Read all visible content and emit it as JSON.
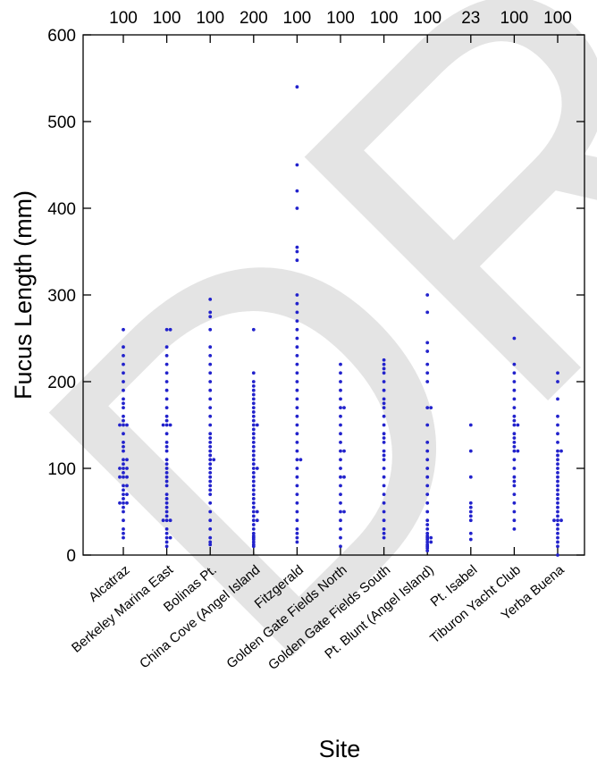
{
  "watermark": "DRAFT",
  "chart_data": {
    "type": "scatter",
    "xlabel": "Site",
    "ylabel": "Fucus Length (mm)",
    "ylim": [
      0,
      600
    ],
    "yticks": [
      "0",
      "100",
      "200",
      "300",
      "400",
      "500",
      "600"
    ],
    "categories": [
      "Alcatraz",
      "Berkeley Marina East",
      "Bolinas Pt.",
      "China Cove (Angel Island",
      "Fitzgerald",
      "Golden Gate Fields North",
      "Golden Gate Fields South",
      "Pt. Blunt (Angel Island)",
      "Pt. Isabel",
      "Tiburon Yacht Club",
      "Yerba Buena"
    ],
    "counts": [
      "100",
      "100",
      "100",
      "200",
      "100",
      "100",
      "100",
      "100",
      "23",
      "100",
      "100"
    ],
    "marker_color": "#2222cc",
    "series": [
      {
        "values": [
          20,
          25,
          30,
          40,
          50,
          55,
          60,
          60,
          60,
          65,
          70,
          70,
          75,
          80,
          80,
          90,
          90,
          90,
          95,
          100,
          100,
          100,
          105,
          110,
          110,
          120,
          125,
          130,
          140,
          150,
          150,
          150,
          155,
          160,
          170,
          175,
          180,
          190,
          200,
          210,
          220,
          230,
          240,
          260
        ]
      },
      {
        "values": [
          10,
          15,
          20,
          20,
          25,
          30,
          40,
          40,
          40,
          45,
          50,
          55,
          60,
          65,
          70,
          80,
          85,
          90,
          95,
          100,
          105,
          110,
          120,
          125,
          130,
          140,
          150,
          150,
          150,
          155,
          160,
          170,
          180,
          190,
          200,
          210,
          220,
          230,
          240,
          260,
          260
        ]
      },
      {
        "values": [
          12,
          15,
          20,
          30,
          40,
          50,
          60,
          70,
          75,
          80,
          85,
          90,
          95,
          100,
          105,
          110,
          110,
          115,
          120,
          125,
          130,
          135,
          140,
          150,
          160,
          170,
          180,
          190,
          200,
          210,
          220,
          230,
          240,
          260,
          275,
          280,
          295
        ]
      },
      {
        "values": [
          10,
          12,
          15,
          18,
          20,
          22,
          25,
          30,
          35,
          40,
          40,
          45,
          50,
          50,
          55,
          60,
          65,
          70,
          75,
          80,
          85,
          90,
          95,
          100,
          100,
          105,
          110,
          115,
          120,
          125,
          130,
          135,
          140,
          145,
          150,
          150,
          155,
          160,
          165,
          170,
          175,
          180,
          185,
          190,
          195,
          200,
          210,
          260
        ]
      },
      {
        "values": [
          15,
          20,
          25,
          30,
          40,
          50,
          60,
          70,
          80,
          90,
          100,
          110,
          110,
          120,
          130,
          140,
          150,
          160,
          170,
          180,
          190,
          200,
          210,
          220,
          230,
          240,
          250,
          260,
          270,
          280,
          290,
          300,
          340,
          350,
          355,
          400,
          420,
          450,
          540
        ]
      },
      {
        "values": [
          10,
          20,
          30,
          40,
          50,
          50,
          60,
          70,
          80,
          90,
          90,
          100,
          110,
          120,
          120,
          130,
          140,
          150,
          160,
          170,
          170,
          180,
          190,
          200,
          210,
          220
        ]
      },
      {
        "values": [
          20,
          25,
          30,
          40,
          50,
          60,
          70,
          80,
          90,
          100,
          110,
          115,
          120,
          130,
          135,
          140,
          150,
          160,
          170,
          175,
          180,
          190,
          200,
          210,
          215,
          220,
          225
        ]
      },
      {
        "values": [
          5,
          8,
          10,
          12,
          15,
          15,
          18,
          20,
          20,
          22,
          25,
          30,
          35,
          40,
          50,
          60,
          70,
          80,
          90,
          100,
          110,
          120,
          130,
          150,
          170,
          170,
          200,
          210,
          220,
          235,
          245,
          280,
          300
        ]
      },
      {
        "values": [
          18,
          25,
          40,
          45,
          50,
          55,
          60,
          90,
          120,
          150
        ]
      },
      {
        "values": [
          30,
          40,
          50,
          60,
          70,
          80,
          85,
          90,
          100,
          110,
          120,
          120,
          125,
          130,
          135,
          140,
          150,
          150,
          155,
          160,
          170,
          180,
          190,
          200,
          210,
          220,
          250
        ]
      },
      {
        "values": [
          0,
          10,
          15,
          20,
          25,
          30,
          35,
          40,
          40,
          40,
          45,
          50,
          55,
          60,
          65,
          70,
          75,
          80,
          85,
          90,
          95,
          100,
          105,
          110,
          115,
          120,
          120,
          130,
          140,
          150,
          160,
          180,
          200,
          210
        ]
      }
    ]
  }
}
